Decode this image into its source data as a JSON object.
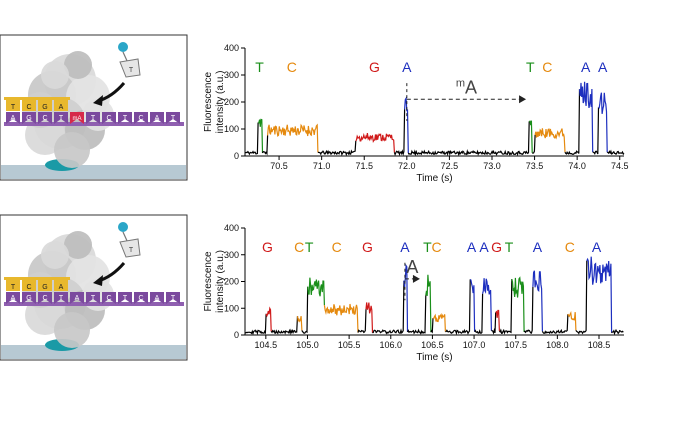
{
  "chart_data": [
    {
      "type": "line",
      "panel": "top",
      "ylabel_lines": [
        "Fluorescence",
        "intensity (a.u.)"
      ],
      "xlabel": "Time (s)",
      "xlim": [
        70.1,
        74.55
      ],
      "ylim": [
        0,
        400
      ],
      "yticks": [
        0,
        100,
        200,
        300,
        400
      ],
      "xticks": [
        70.5,
        71.0,
        71.5,
        72.0,
        72.5,
        73.0,
        73.5,
        74.0,
        74.5
      ],
      "xtick_labels": [
        "70.5",
        "71.0",
        "71.5",
        "72.0",
        "72.5",
        "73.0",
        "73.5",
        "74.0",
        "74.5"
      ],
      "colors": {
        "T": "#1a8f1a",
        "C": "#e58a0f",
        "G": "#d01a1a",
        "A": "#1d2fbf",
        "baseline": "#000000"
      },
      "pulses": [
        {
          "base": "T",
          "start": 70.25,
          "end": 70.3,
          "level": 130
        },
        {
          "base": "C",
          "start": 70.36,
          "end": 70.95,
          "level": 95
        },
        {
          "base": "G",
          "start": 71.4,
          "end": 71.85,
          "level": 70
        },
        {
          "base": "A",
          "start": 71.97,
          "end": 72.01,
          "level": 175
        },
        {
          "base": "T",
          "start": 73.43,
          "end": 73.47,
          "level": 120
        },
        {
          "base": "C",
          "start": 73.5,
          "end": 73.85,
          "level": 85
        },
        {
          "base": "A",
          "start": 74.02,
          "end": 74.18,
          "level": 230
        },
        {
          "base": "A",
          "start": 74.25,
          "end": 74.35,
          "level": 195
        }
      ],
      "base_labels": [
        {
          "text": "T",
          "base": "T",
          "x": 70.27
        },
        {
          "text": "C",
          "base": "C",
          "x": 70.65
        },
        {
          "text": "G",
          "base": "G",
          "x": 71.62
        },
        {
          "text": "A",
          "base": "A",
          "x": 72.0
        },
        {
          "text": "T",
          "base": "T",
          "x": 73.45
        },
        {
          "text": "C",
          "base": "C",
          "x": 73.65
        },
        {
          "text": "A",
          "base": "A",
          "x": 74.1
        },
        {
          "text": "A",
          "base": "A",
          "x": 74.3
        }
      ],
      "annotation": {
        "text": "A",
        "superscript": "m",
        "arrow_from": 72.0,
        "arrow_to": 73.4,
        "y": 210
      }
    },
    {
      "type": "line",
      "panel": "bottom",
      "ylabel_lines": [
        "Fluorescence",
        "intensity (a.u.)"
      ],
      "xlabel": "Time (s)",
      "xlim": [
        104.25,
        108.8
      ],
      "ylim": [
        0,
        400
      ],
      "yticks": [
        0,
        100,
        200,
        300,
        400
      ],
      "xticks": [
        104.5,
        105.0,
        105.5,
        106.0,
        106.5,
        107.0,
        107.5,
        108.0,
        108.5
      ],
      "xtick_labels": [
        "104.5",
        "105.0",
        "105.5",
        "106.0",
        "106.5",
        "107.0",
        "107.5",
        "108.0",
        "108.5"
      ],
      "colors": {
        "T": "#1a8f1a",
        "C": "#e58a0f",
        "G": "#d01a1a",
        "A": "#1d2fbf",
        "baseline": "#000000"
      },
      "pulses": [
        {
          "base": "G",
          "start": 104.5,
          "end": 104.56,
          "level": 85
        },
        {
          "base": "C",
          "start": 104.88,
          "end": 104.93,
          "level": 60
        },
        {
          "base": "T",
          "start": 105.0,
          "end": 105.2,
          "level": 175
        },
        {
          "base": "C",
          "start": 105.2,
          "end": 105.6,
          "level": 95
        },
        {
          "base": "G",
          "start": 105.7,
          "end": 105.78,
          "level": 100
        },
        {
          "base": "A",
          "start": 106.15,
          "end": 106.2,
          "level": 220
        },
        {
          "base": "T",
          "start": 106.42,
          "end": 106.48,
          "level": 185
        },
        {
          "base": "C",
          "start": 106.5,
          "end": 106.65,
          "level": 65
        },
        {
          "base": "A",
          "start": 106.95,
          "end": 107.0,
          "level": 190
        },
        {
          "base": "A",
          "start": 107.1,
          "end": 107.2,
          "level": 190
        },
        {
          "base": "G",
          "start": 107.26,
          "end": 107.3,
          "level": 75
        },
        {
          "base": "T",
          "start": 107.45,
          "end": 107.6,
          "level": 175
        },
        {
          "base": "A",
          "start": 107.7,
          "end": 107.82,
          "level": 200
        },
        {
          "base": "C",
          "start": 108.12,
          "end": 108.22,
          "level": 70
        },
        {
          "base": "A",
          "start": 108.35,
          "end": 108.65,
          "level": 240
        }
      ],
      "base_labels": [
        {
          "text": "G",
          "base": "G",
          "x": 104.52
        },
        {
          "text": "C",
          "base": "C",
          "x": 104.9
        },
        {
          "text": "T",
          "base": "T",
          "x": 105.02
        },
        {
          "text": "C",
          "base": "C",
          "x": 105.35
        },
        {
          "text": "G",
          "base": "G",
          "x": 105.72
        },
        {
          "text": "A",
          "base": "A",
          "x": 106.17
        },
        {
          "text": "T",
          "base": "T",
          "x": 106.44
        },
        {
          "text": "C",
          "base": "C",
          "x": 106.55
        },
        {
          "text": "A",
          "base": "A",
          "x": 106.97
        },
        {
          "text": "A",
          "base": "A",
          "x": 107.12
        },
        {
          "text": "G",
          "base": "G",
          "x": 107.27
        },
        {
          "text": "T",
          "base": "T",
          "x": 107.42
        },
        {
          "text": "A",
          "base": "A",
          "x": 107.76
        },
        {
          "text": "C",
          "base": "C",
          "x": 108.15
        },
        {
          "text": "A",
          "base": "A",
          "x": 108.47
        }
      ],
      "annotation": {
        "text": "A",
        "superscript": "",
        "arrow_from": 106.17,
        "arrow_to": 106.35,
        "y": 210
      }
    }
  ],
  "schematics": [
    {
      "panel": "top",
      "template_strand": [
        "A",
        "G",
        "C",
        "T",
        "mA",
        "T",
        "C",
        "T",
        "C",
        "A",
        "T"
      ],
      "nascent_strand": [
        "T",
        "C",
        "G",
        "A"
      ],
      "incoming_nucleotide": "T"
    },
    {
      "panel": "bottom",
      "template_strand": [
        "A",
        "G",
        "C",
        "T",
        "A",
        "T",
        "C",
        "T",
        "C",
        "A",
        "T"
      ],
      "nascent_strand": [
        "T",
        "C",
        "G",
        "A"
      ],
      "incoming_nucleotide": "T"
    }
  ]
}
